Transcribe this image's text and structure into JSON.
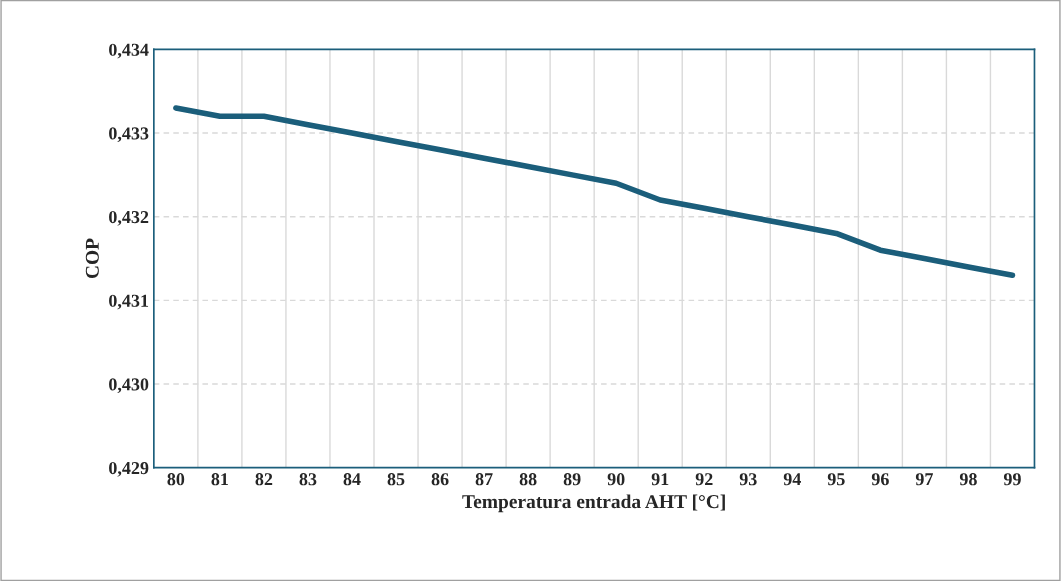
{
  "chart_data": {
    "type": "line",
    "xlabel": "Temperatura entrada AHT [°C]",
    "ylabel": "COP",
    "categories": [
      "80",
      "81",
      "82",
      "83",
      "84",
      "85",
      "86",
      "87",
      "88",
      "89",
      "90",
      "91",
      "92",
      "93",
      "94",
      "95",
      "96",
      "97",
      "98",
      "99"
    ],
    "series": [
      {
        "color": "#1b5e7b",
        "values": [
          0.4333,
          0.4332,
          0.4332,
          0.4331,
          0.433,
          0.4329,
          0.4328,
          0.4327,
          0.4326,
          0.4325,
          0.4324,
          0.4322,
          0.4321,
          0.432,
          0.4319,
          0.4318,
          0.4316,
          0.4315,
          0.4314,
          0.4313
        ]
      }
    ],
    "ylim": [
      0.429,
      0.434
    ],
    "yticks": [
      {
        "value": 0.429,
        "label": "0,429"
      },
      {
        "value": 0.43,
        "label": "0,430"
      },
      {
        "value": 0.431,
        "label": "0,431"
      },
      {
        "value": 0.432,
        "label": "0,432"
      },
      {
        "value": 0.433,
        "label": "0,433"
      },
      {
        "value": 0.434,
        "label": "0,434"
      }
    ],
    "grid": true,
    "marker": "none",
    "line_style": "solid"
  }
}
